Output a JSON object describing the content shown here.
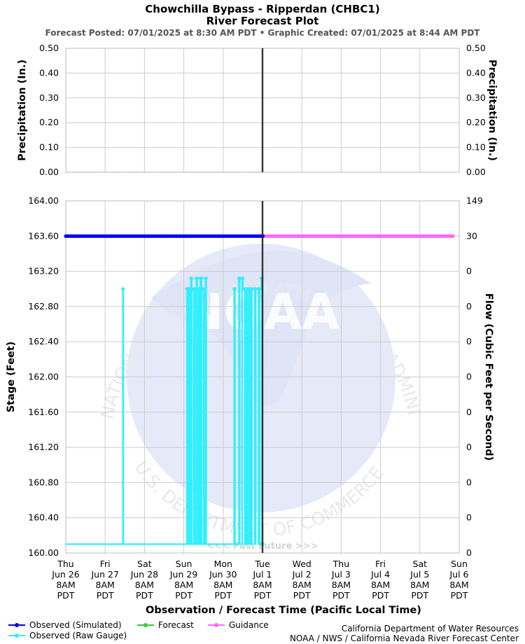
{
  "header": {
    "title_line1": "Chowchilla Bypass - Ripperdan (CHBC1)",
    "title_line2": "River Forecast Plot",
    "subtitle": "Forecast Posted: 07/01/2025 at 8:30 AM PDT  •  Graphic Created: 07/01/2025 at 8:44 AM PDT"
  },
  "colors": {
    "observed_simulated": "#0000ee",
    "observed_raw": "#33eeff",
    "forecast": "#33cc33",
    "guidance": "#ff66ff",
    "now_line": "#333333",
    "grid": "#cccccc",
    "watermark": "#e6e9f8",
    "precip_dash": "#b0b4f0"
  },
  "watermark": {
    "top_text": "NATIONAL OCEANIC AND ATMOSPHERIC ADMINISTRATION",
    "bottom_text": "U.S. DEPARTMENT OF COMMERCE",
    "logo": "NOAA"
  },
  "chart_data": [
    {
      "type": "line",
      "panel": "precipitation",
      "ylabel": "Precipitation (In.)",
      "ylabel_right": "Precipitation (In.)",
      "ylim": [
        0,
        0.5
      ],
      "yticks": [
        "0.00",
        "0.10",
        "0.20",
        "0.30",
        "0.40",
        "0.50"
      ],
      "grid": true,
      "series": [
        {
          "name": "",
          "x_range": [
            0,
            5
          ],
          "values": [
            0.0,
            0.0
          ]
        }
      ]
    },
    {
      "type": "line",
      "panel": "stage",
      "ylabel": "Stage (Feet)",
      "ylabel_right": "Flow (Cubic Feet per Second)",
      "xlabel": "Observation / Forecast Time (Pacific Local Time)",
      "ylim": [
        160.0,
        164.0
      ],
      "yticks": [
        "160.00",
        "160.40",
        "160.80",
        "161.20",
        "161.60",
        "162.00",
        "162.40",
        "162.80",
        "163.20",
        "163.60",
        "164.00"
      ],
      "yticks_right": [
        "0",
        "0",
        "0",
        "0",
        "0",
        "0",
        "0",
        "0",
        "0",
        "30",
        "149"
      ],
      "xticks": [
        [
          "Thu",
          "Jun 26",
          "8AM",
          "PDT"
        ],
        [
          "Fri",
          "Jun 27",
          "8AM",
          "PDT"
        ],
        [
          "Sat",
          "Jun 28",
          "8AM",
          "PDT"
        ],
        [
          "Sun",
          "Jun 29",
          "8AM",
          "PDT"
        ],
        [
          "Mon",
          "Jun 30",
          "8AM",
          "PDT"
        ],
        [
          "Tue",
          "Jul 1",
          "8AM",
          "PDT"
        ],
        [
          "Wed",
          "Jul 2",
          "8AM",
          "PDT"
        ],
        [
          "Thu",
          "Jul 3",
          "8AM",
          "PDT"
        ],
        [
          "Fri",
          "Jul 4",
          "8AM",
          "PDT"
        ],
        [
          "Sat",
          "Jul 5",
          "8AM",
          "PDT"
        ],
        [
          "Sun",
          "Jul 6",
          "8AM",
          "PDT"
        ]
      ],
      "now_x": 5,
      "past_future_label": "<<< Past   Future >>>",
      "grid": true,
      "series": [
        {
          "name": "Observed (Simulated)",
          "x_range": [
            0,
            5
          ],
          "values": [
            163.6,
            163.6
          ]
        },
        {
          "name": "Guidance",
          "x_range": [
            5,
            9.85
          ],
          "values": [
            163.6,
            163.6
          ]
        },
        {
          "name": "Observed (Raw Gauge)",
          "points": [
            [
              0,
              160.1
            ],
            [
              1.45,
              160.1
            ],
            [
              1.45,
              163.0
            ],
            [
              1.46,
              163.0
            ],
            [
              1.46,
              160.1
            ],
            [
              3.08,
              160.1
            ],
            [
              3.08,
              163.0
            ],
            [
              3.1,
              163.0
            ],
            [
              3.1,
              160.1
            ],
            [
              3.12,
              160.1
            ],
            [
              3.12,
              163.0
            ],
            [
              3.15,
              163.0
            ],
            [
              3.15,
              160.1
            ],
            [
              3.18,
              160.1
            ],
            [
              3.18,
              163.12
            ],
            [
              3.2,
              163.12
            ],
            [
              3.2,
              160.1
            ],
            [
              3.25,
              160.1
            ],
            [
              3.25,
              163.0
            ],
            [
              3.28,
              163.0
            ],
            [
              3.28,
              160.1
            ],
            [
              3.32,
              160.1
            ],
            [
              3.32,
              163.12
            ],
            [
              3.34,
              163.12
            ],
            [
              3.34,
              160.1
            ],
            [
              3.38,
              160.1
            ],
            [
              3.38,
              163.0
            ],
            [
              3.4,
              163.0
            ],
            [
              3.4,
              160.1
            ],
            [
              3.42,
              160.1
            ],
            [
              3.42,
              163.12
            ],
            [
              3.45,
              163.12
            ],
            [
              3.45,
              160.1
            ],
            [
              3.5,
              160.1
            ],
            [
              3.5,
              163.0
            ],
            [
              3.53,
              163.0
            ],
            [
              3.53,
              160.1
            ],
            [
              3.55,
              160.1
            ],
            [
              3.55,
              163.12
            ],
            [
              3.57,
              163.12
            ],
            [
              3.57,
              160.1
            ],
            [
              4.28,
              160.1
            ],
            [
              4.28,
              163.0
            ],
            [
              4.3,
              163.0
            ],
            [
              4.3,
              160.1
            ],
            [
              4.4,
              160.1
            ],
            [
              4.4,
              163.12
            ],
            [
              4.42,
              163.12
            ],
            [
              4.42,
              160.1
            ],
            [
              4.48,
              160.1
            ],
            [
              4.48,
              163.12
            ],
            [
              4.5,
              163.12
            ],
            [
              4.5,
              163.0
            ],
            [
              4.55,
              163.0
            ],
            [
              4.55,
              160.1
            ],
            [
              4.58,
              160.1
            ],
            [
              4.58,
              163.0
            ],
            [
              4.62,
              163.0
            ],
            [
              4.62,
              160.1
            ],
            [
              4.66,
              160.1
            ],
            [
              4.66,
              163.0
            ],
            [
              4.7,
              163.0
            ],
            [
              4.7,
              160.1
            ],
            [
              4.73,
              160.1
            ],
            [
              4.73,
              163.0
            ],
            [
              4.8,
              163.0
            ],
            [
              4.8,
              160.1
            ],
            [
              4.83,
              160.1
            ],
            [
              4.83,
              163.0
            ],
            [
              4.9,
              163.0
            ],
            [
              4.9,
              160.1
            ],
            [
              4.93,
              160.1
            ],
            [
              4.93,
              163.0
            ],
            [
              4.97,
              163.0
            ],
            [
              4.97,
              163.12
            ],
            [
              4.99,
              163.12
            ],
            [
              4.99,
              160.1
            ]
          ]
        }
      ]
    }
  ],
  "legend": {
    "items": [
      {
        "label": "Observed (Simulated)",
        "color_key": "observed_simulated"
      },
      {
        "label": "Forecast",
        "color_key": "forecast"
      },
      {
        "label": "Guidance",
        "color_key": "guidance"
      },
      {
        "label": "Observed (Raw Gauge)",
        "color_key": "observed_raw"
      }
    ]
  },
  "credits": {
    "line1": "California Department of Water Resources",
    "line2": "NOAA / NWS / California Nevada River Forecast Center"
  }
}
